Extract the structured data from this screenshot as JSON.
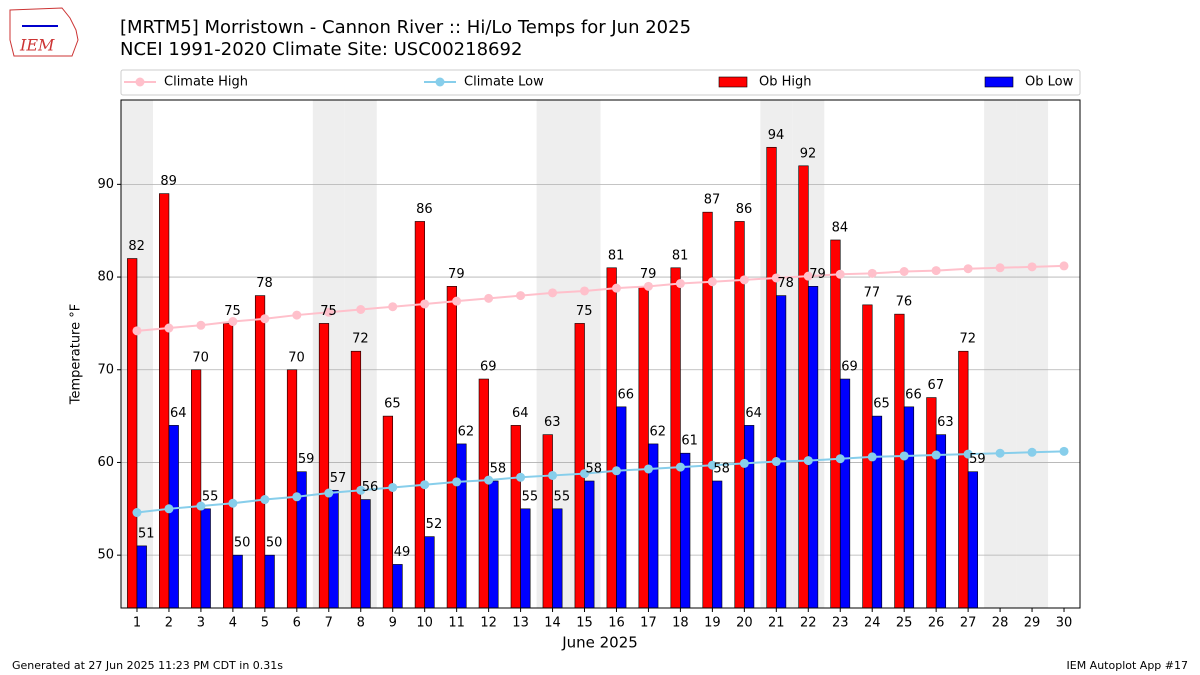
{
  "chart_data": {
    "type": "bar",
    "logo_text": "IEM",
    "title": "[MRTM5] Morristown - Cannon River :: Hi/Lo Temps for Jun 2025",
    "subtitle": "NCEI 1991-2020 Climate Site: USC00218692",
    "xlabel": "June 2025",
    "ylabel": "Temperature °F",
    "footer_left": "Generated at 27 Jun 2025 11:23 PM CDT in 0.31s",
    "footer_right": "IEM Autoplot App #17",
    "x": [
      1,
      2,
      3,
      4,
      5,
      6,
      7,
      8,
      9,
      10,
      11,
      12,
      13,
      14,
      15,
      16,
      17,
      18,
      19,
      20,
      21,
      22,
      23,
      24,
      25,
      26,
      27,
      28,
      29,
      30
    ],
    "xlim": [
      0.5,
      30.5
    ],
    "xticks": [
      1,
      2,
      3,
      4,
      5,
      6,
      7,
      8,
      9,
      10,
      11,
      12,
      13,
      14,
      15,
      16,
      17,
      18,
      19,
      20,
      21,
      22,
      23,
      24,
      25,
      26,
      27,
      28,
      29,
      30
    ],
    "ylim": [
      44.3,
      99.1
    ],
    "yticks": [
      50,
      60,
      70,
      80,
      90
    ],
    "grid": true,
    "shaded_days": [
      1,
      7,
      8,
      14,
      15,
      21,
      22,
      28,
      29
    ],
    "shade_color": "#eeeeee",
    "series": [
      {
        "name": "Climate High",
        "type": "line",
        "color": "#ffc0cb",
        "values": [
          74.2,
          74.5,
          74.8,
          75.2,
          75.5,
          75.9,
          76.2,
          76.5,
          76.8,
          77.1,
          77.4,
          77.7,
          78.0,
          78.3,
          78.5,
          78.8,
          79.0,
          79.3,
          79.5,
          79.7,
          79.9,
          80.1,
          80.3,
          80.4,
          80.6,
          80.7,
          80.9,
          81.0,
          81.1,
          81.2
        ]
      },
      {
        "name": "Climate Low",
        "type": "line",
        "color": "#87ceeb",
        "values": [
          54.6,
          55.0,
          55.3,
          55.6,
          56.0,
          56.3,
          56.7,
          57.0,
          57.3,
          57.6,
          57.9,
          58.1,
          58.4,
          58.6,
          58.8,
          59.1,
          59.3,
          59.5,
          59.7,
          59.9,
          60.1,
          60.2,
          60.4,
          60.6,
          60.7,
          60.8,
          60.9,
          61.0,
          61.1,
          61.2
        ]
      },
      {
        "name": "Ob High",
        "type": "bar",
        "color": "#ff0000",
        "values": [
          82,
          89,
          70,
          75,
          78,
          70,
          75,
          72,
          65,
          86,
          79,
          69,
          64,
          63,
          75,
          81,
          79,
          81,
          87,
          86,
          94,
          92,
          84,
          77,
          76,
          67,
          72,
          null,
          null,
          null
        ]
      },
      {
        "name": "Ob Low",
        "type": "bar",
        "color": "#0000ff",
        "values": [
          51,
          64,
          55,
          50,
          50,
          59,
          57,
          56,
          49,
          52,
          62,
          58,
          55,
          55,
          58,
          66,
          62,
          61,
          58,
          64,
          78,
          79,
          69,
          65,
          66,
          63,
          59,
          null,
          null,
          null
        ]
      }
    ]
  }
}
